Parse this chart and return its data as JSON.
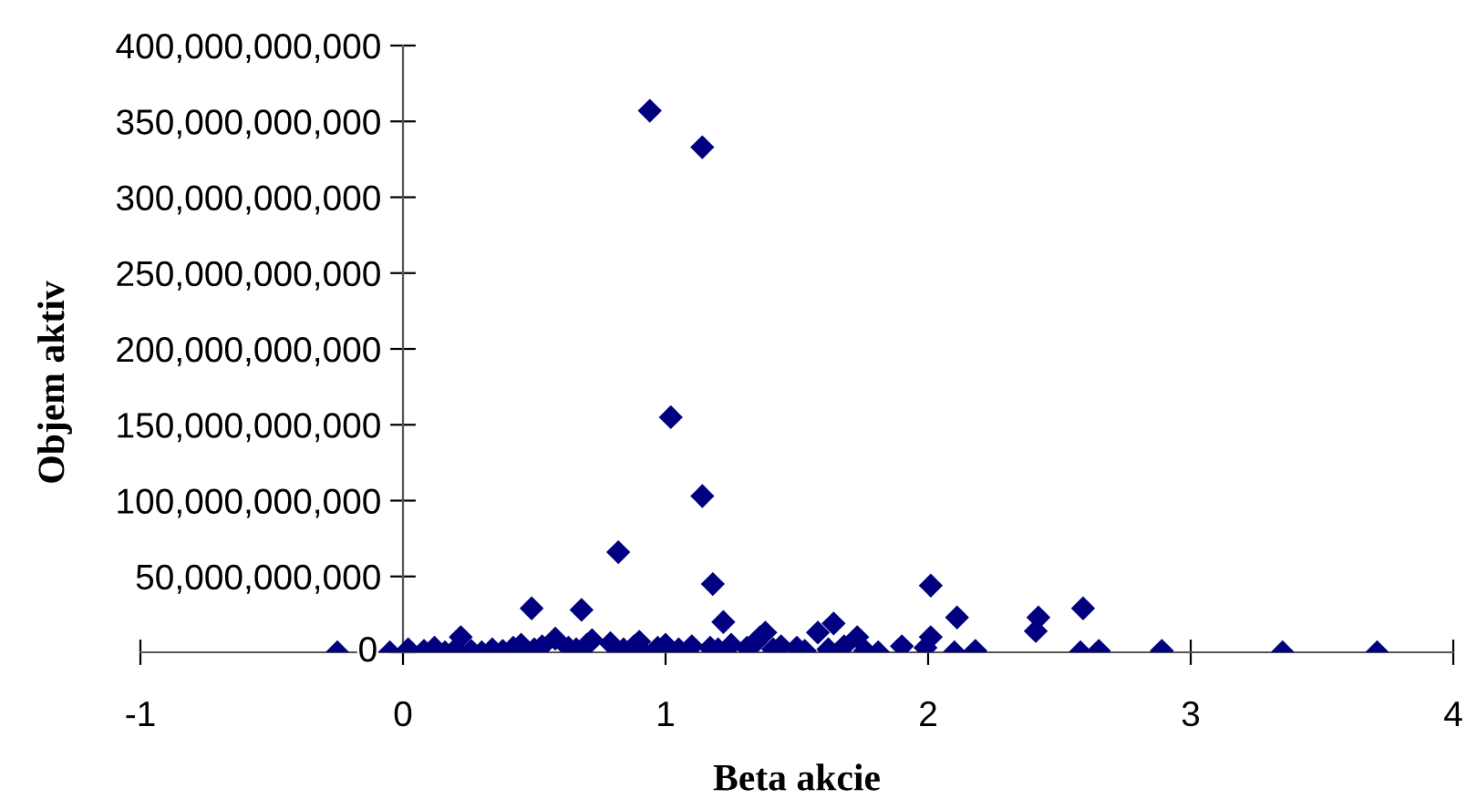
{
  "chart_data": {
    "type": "scatter",
    "xlabel": "Beta akcie",
    "ylabel": "Objem aktiv",
    "marker": "diamond",
    "grid": false,
    "xlim": [
      -1,
      4
    ],
    "xticks": [
      -1,
      0,
      1,
      2,
      3,
      4
    ],
    "ylim": [
      0,
      400000000000
    ],
    "yticks": [
      {
        "value": 0,
        "label": "0"
      },
      {
        "value": 50000000000,
        "label": "50,000,000,000"
      },
      {
        "value": 100000000000,
        "label": "100,000,000,000"
      },
      {
        "value": 150000000000,
        "label": "150,000,000,000"
      },
      {
        "value": 200000000000,
        "label": "200,000,000,000"
      },
      {
        "value": 250000000000,
        "label": "250,000,000,000"
      },
      {
        "value": 300000000000,
        "label": "300,000,000,000"
      },
      {
        "value": 350000000000,
        "label": "350,000,000,000"
      },
      {
        "value": 400000000000,
        "label": "400,000,000,000"
      }
    ],
    "series": [
      {
        "color": "#000080",
        "x": [
          0.94,
          1.14,
          1.02,
          1.14,
          0.82,
          1.18,
          0.49,
          0.68,
          1.22,
          2.01,
          2.11,
          2.42,
          2.41,
          2.59,
          1.38,
          1.58,
          1.64,
          1.73,
          0.22,
          1.9,
          2.01,
          1.99,
          1.81,
          2.1,
          2.18,
          2.58,
          2.65,
          2.89,
          3.35,
          3.71,
          -0.25,
          -0.05,
          0.02,
          0.08,
          0.12,
          0.16,
          0.2,
          0.26,
          0.3,
          0.34,
          0.38,
          0.42,
          0.45,
          0.5,
          0.53,
          0.63,
          0.66,
          0.7,
          0.79,
          0.84,
          0.88,
          0.91,
          0.97,
          1.0,
          1.05,
          1.1,
          1.17,
          1.2,
          1.25,
          1.31,
          1.34,
          1.41,
          1.44,
          1.5,
          1.53,
          1.62,
          1.68,
          1.76,
          0.58,
          0.72,
          0.9,
          1.36
        ],
        "values": [
          357000000000,
          333000000000,
          155000000000,
          103000000000,
          66000000000,
          45000000000,
          29000000000,
          28000000000,
          20000000000,
          44000000000,
          23000000000,
          23000000000,
          14000000000,
          29000000000,
          13000000000,
          13000000000,
          19000000000,
          10000000000,
          10000000000,
          4000000000,
          10000000000,
          3000000000,
          0,
          0,
          1000000000,
          0,
          1000000000,
          1000000000,
          0,
          0,
          0,
          0,
          2000000000,
          1000000000,
          3000000000,
          0,
          2000000000,
          1000000000,
          0,
          2000000000,
          1000000000,
          3000000000,
          5000000000,
          2000000000,
          4000000000,
          3000000000,
          2000000000,
          5000000000,
          6000000000,
          2000000000,
          4000000000,
          1000000000,
          3000000000,
          5000000000,
          2000000000,
          4000000000,
          3000000000,
          2000000000,
          5000000000,
          3000000000,
          6000000000,
          2000000000,
          4000000000,
          3000000000,
          1000000000,
          2000000000,
          4000000000,
          1000000000,
          9000000000,
          8000000000,
          7000000000,
          10000000000
        ]
      }
    ]
  }
}
